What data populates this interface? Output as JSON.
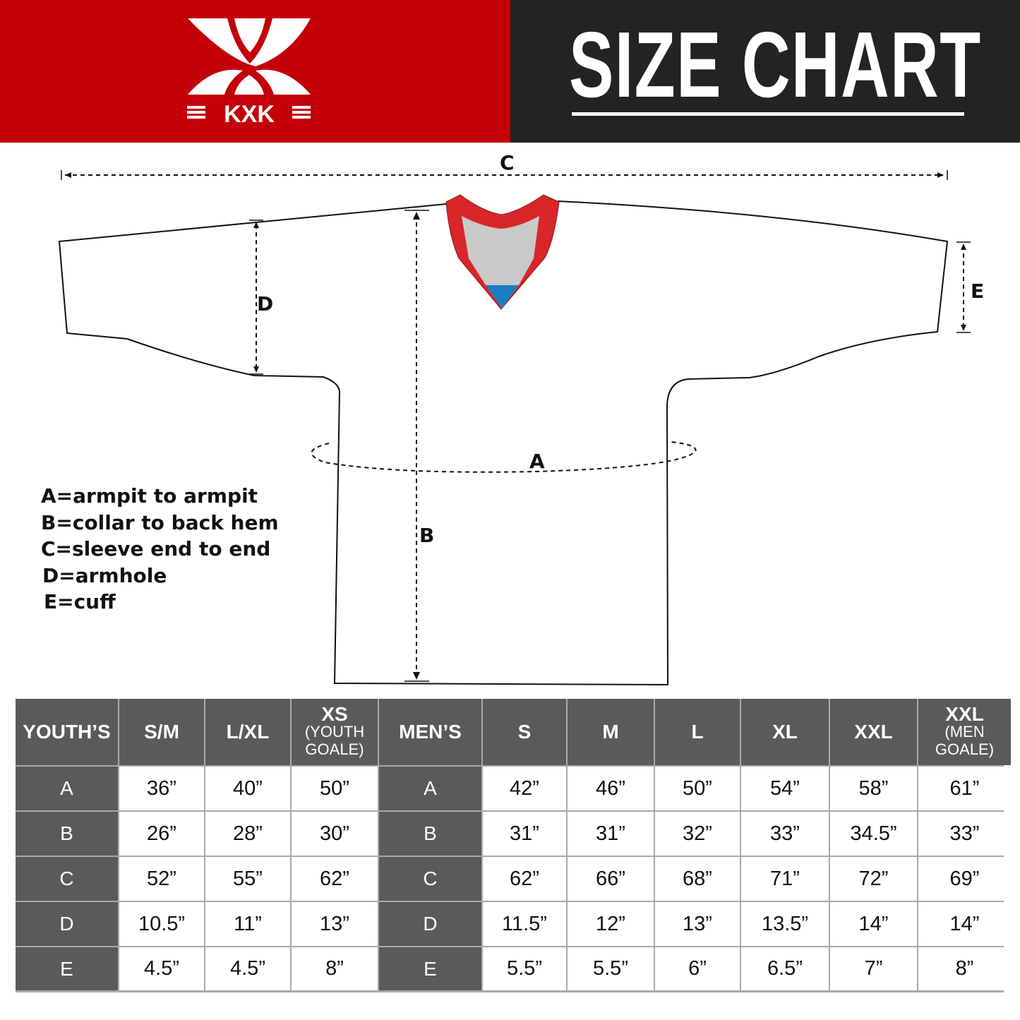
{
  "brand": {
    "logo_text": "KXK",
    "primary_color": "#c40008",
    "dark_color": "#232323"
  },
  "header": {
    "title": "SIZE CHART"
  },
  "diagram": {
    "labels": {
      "A": "A",
      "B": "B",
      "C": "C",
      "D": "D",
      "E": "E"
    },
    "collar_colors": {
      "trim": "#d8262a",
      "inner": "#c9c9c9",
      "accent": "#1a7ec2"
    }
  },
  "legend": [
    "A=armpit to armpit",
    "B=collar to back hem",
    "C=sleeve end to end",
    "D=armhole",
    "E=cuff"
  ],
  "table": {
    "youth": {
      "title": "YOUTH’S",
      "sizes": [
        {
          "main": "S/M",
          "sub": ""
        },
        {
          "main": "L/XL",
          "sub": ""
        },
        {
          "main": "XS",
          "sub": "(YOUTH GOALE)"
        }
      ],
      "rows": [
        {
          "label": "A",
          "values": [
            "36”",
            "40”",
            "50”"
          ]
        },
        {
          "label": "B",
          "values": [
            "26”",
            "28”",
            "30”"
          ]
        },
        {
          "label": "C",
          "values": [
            "52”",
            "55”",
            "62”"
          ]
        },
        {
          "label": "D",
          "values": [
            "10.5”",
            "11”",
            "13”"
          ]
        },
        {
          "label": "E",
          "values": [
            "4.5”",
            "4.5”",
            "8”"
          ]
        }
      ]
    },
    "men": {
      "title": "MEN’S",
      "sizes": [
        {
          "main": "S",
          "sub": ""
        },
        {
          "main": "M",
          "sub": ""
        },
        {
          "main": "L",
          "sub": ""
        },
        {
          "main": "XL",
          "sub": ""
        },
        {
          "main": "XXL",
          "sub": ""
        },
        {
          "main": "XXL",
          "sub": "(MEN GOALE)"
        }
      ],
      "rows": [
        {
          "label": "A",
          "values": [
            "42”",
            "46”",
            "50”",
            "54”",
            "58”",
            "61”"
          ]
        },
        {
          "label": "B",
          "values": [
            "31”",
            "31”",
            "32”",
            "33”",
            "34.5”",
            "33”"
          ]
        },
        {
          "label": "C",
          "values": [
            "62”",
            "66”",
            "68”",
            "71”",
            "72”",
            "69”"
          ]
        },
        {
          "label": "D",
          "values": [
            "11.5”",
            "12”",
            "13”",
            "13.5”",
            "14”",
            "14”"
          ]
        },
        {
          "label": "E",
          "values": [
            "5.5”",
            "5.5”",
            "6”",
            "6.5”",
            "7”",
            "8”"
          ]
        }
      ]
    }
  }
}
